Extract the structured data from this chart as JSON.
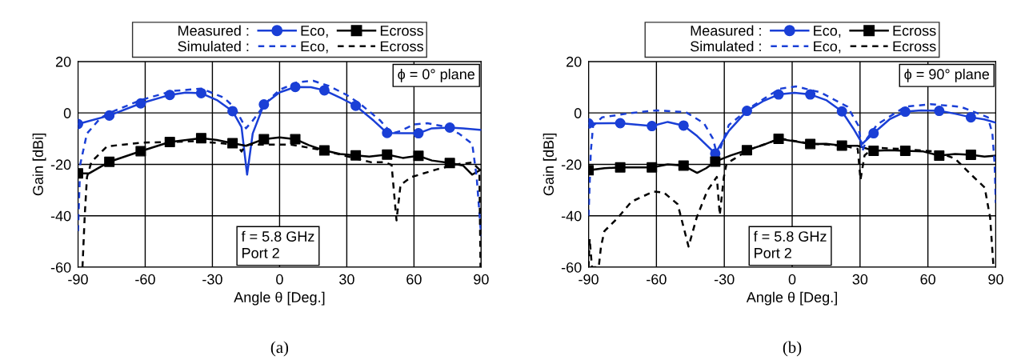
{
  "chart_data": [
    {
      "type": "line",
      "title": "(a)",
      "xlabel": "Angle θ [Deg.]",
      "ylabel": "Gain [dBi]",
      "xlim": [
        -90,
        90
      ],
      "ylim": [
        -60,
        20
      ],
      "xticks": [
        -90,
        -60,
        -30,
        0,
        30,
        60,
        90
      ],
      "yticks": [
        -60,
        -40,
        -20,
        0,
        20
      ],
      "grid": true,
      "legend": "top",
      "annotations": [
        "Measured :",
        "Simulated :",
        "ϕ = 0° plane",
        "f = 5.8 GHz\nPort 2"
      ],
      "series": [
        {
          "color": "#1a3fd6",
          "line_style": "solid",
          "x": [
            -90,
            -76,
            -62,
            -49,
            -42,
            -35,
            -28,
            -21,
            -17,
            -14.5,
            -12,
            -7,
            0,
            7,
            14,
            20,
            28,
            34,
            42,
            48,
            55,
            62,
            68,
            76,
            82,
            90
          ],
          "values": [
            -4.3,
            -1,
            3.7,
            7,
            7.9,
            7.7,
            5,
            0.7,
            -5.5,
            -24,
            -8,
            3.3,
            8,
            10.1,
            10,
            8.8,
            5.5,
            2.8,
            -3,
            -7.8,
            -7.9,
            -7.9,
            -6,
            -5.7,
            -6,
            -6.6
          ]
        },
        {
          "name": "Eco,",
          "color": "#1a3fd6",
          "type": "scatter",
          "marker": "circle",
          "x": [
            -90,
            -76,
            -62,
            -49,
            -35,
            -21,
            -7,
            7,
            20,
            34,
            48,
            62,
            76
          ],
          "values": [
            -4.3,
            -1,
            3.7,
            7,
            7.7,
            0.7,
            3.3,
            10.1,
            8.8,
            2.8,
            -7.8,
            -7.9,
            -5.7
          ]
        },
        {
          "color": "#000000",
          "line_style": "solid",
          "x": [
            -90,
            -85,
            -80,
            -76,
            -62,
            -49,
            -35,
            -28,
            -21,
            -15,
            -7,
            0,
            7,
            13,
            20,
            27,
            34,
            40,
            48,
            55,
            62,
            68,
            76,
            82,
            86,
            90
          ],
          "values": [
            -23.5,
            -23.5,
            -21,
            -19,
            -14.9,
            -11.3,
            -9.8,
            -10.5,
            -11.8,
            -12.8,
            -10.2,
            -9.5,
            -10.2,
            -12.5,
            -14.6,
            -16,
            -16.5,
            -17,
            -16.2,
            -17.5,
            -16.7,
            -18.5,
            -19.5,
            -20.5,
            -24,
            -22
          ]
        },
        {
          "name": "Ecross",
          "color": "#000000",
          "type": "scatter",
          "marker": "square",
          "x": [
            -90,
            -76,
            -62,
            -49,
            -35,
            -21,
            -7,
            7,
            20,
            34,
            48,
            62,
            76
          ],
          "values": [
            -23.5,
            -19,
            -14.9,
            -11.3,
            -9.8,
            -11.8,
            -10.2,
            -10.2,
            -14.6,
            -16.5,
            -16.2,
            -16.7,
            -19.5
          ]
        },
        {
          "name": "Eco,",
          "color": "#1a3fd6",
          "line_style": "dashed",
          "x": [
            -90,
            -89,
            -86,
            -80,
            -76,
            -62,
            -48,
            -35,
            -25,
            -20,
            -15,
            -12,
            -6,
            0,
            8,
            15,
            22,
            30,
            36,
            45,
            50,
            54,
            60,
            66,
            72,
            80,
            86,
            88,
            90
          ],
          "values": [
            -46,
            -20,
            -8,
            -2,
            0,
            5,
            8.5,
            9.5,
            6,
            2,
            -6,
            -3,
            4,
            9,
            12,
            12.5,
            10.5,
            7,
            3.5,
            -3,
            -8,
            -7,
            -4.5,
            -4,
            -5,
            -8,
            -12,
            -25,
            -48
          ]
        },
        {
          "name": "Ecross",
          "color": "#000000",
          "line_style": "dashed",
          "x": [
            -88,
            -87,
            -86,
            -84,
            -77,
            -62,
            -38,
            -19,
            -17,
            -15.5,
            -13.4,
            5,
            20,
            35,
            41,
            47,
            50,
            52.2,
            54,
            58.7,
            70,
            79,
            86,
            89.2,
            89.7
          ],
          "values": [
            -60,
            -40,
            -25,
            -19,
            -13,
            -11.6,
            -11,
            -12.3,
            -15,
            -13,
            -12.3,
            -12.3,
            -14.6,
            -18,
            -19.2,
            -19.2,
            -20.2,
            -41.8,
            -28,
            -25,
            -22,
            -20,
            -19.3,
            -22,
            -60
          ]
        }
      ]
    },
    {
      "type": "line",
      "title": "(b)",
      "xlabel": "Angle θ [Deg.]",
      "ylabel": "Gain [dBi]",
      "xlim": [
        -90,
        90
      ],
      "ylim": [
        -60,
        20
      ],
      "xticks": [
        -90,
        -60,
        -30,
        0,
        30,
        60,
        90
      ],
      "yticks": [
        -60,
        -40,
        -20,
        0,
        20
      ],
      "grid": true,
      "legend": "top",
      "annotations": [
        "Measured :",
        "Simulated :",
        "ϕ = 90° plane",
        "f = 5.8 GHz\nPort 2"
      ],
      "series": [
        {
          "color": "#1a3fd6",
          "line_style": "solid",
          "x": [
            -90,
            -76,
            -62,
            -55,
            -48,
            -42,
            -34,
            -28,
            -20,
            -13,
            -6,
            1,
            8,
            15,
            22,
            27,
            31,
            36,
            43,
            50,
            57,
            65,
            72,
            79,
            85,
            90
          ],
          "values": [
            -4.1,
            -4,
            -5.1,
            -3.5,
            -4.9,
            -9,
            -15.8,
            -7,
            0.8,
            4.5,
            7.2,
            7.8,
            7.2,
            5,
            0.6,
            -6,
            -12,
            -7.9,
            -2.5,
            0.5,
            1,
            0.8,
            -0.3,
            -1.7,
            -2.5,
            -3.8
          ]
        },
        {
          "name": "Eco,",
          "color": "#1a3fd6",
          "type": "scatter",
          "marker": "circle",
          "x": [
            -90,
            -76,
            -62,
            -48,
            -34,
            -20,
            -6,
            8,
            22,
            36,
            50,
            65,
            79
          ],
          "values": [
            -4.1,
            -4,
            -5.1,
            -4.9,
            -15.8,
            0.8,
            7.2,
            7.2,
            0.6,
            -7.9,
            0.5,
            0.8,
            -1.7
          ]
        },
        {
          "color": "#000000",
          "line_style": "solid",
          "x": [
            -90,
            -83,
            -76,
            -62,
            -55,
            -48,
            -42,
            -38,
            -34,
            -27,
            -20,
            -13,
            -6,
            1,
            8,
            15,
            22,
            29,
            36,
            43,
            50,
            58,
            65,
            72,
            79,
            85,
            90
          ],
          "values": [
            -22.3,
            -21.5,
            -21.2,
            -21.2,
            -20,
            -20.5,
            -23.3,
            -21.5,
            -18.9,
            -16.5,
            -14.5,
            -12.5,
            -10.1,
            -11,
            -12.1,
            -12,
            -12.7,
            -12.8,
            -14.7,
            -14.5,
            -14.7,
            -15,
            -16.6,
            -16,
            -16.3,
            -17,
            -16.6
          ]
        },
        {
          "name": "Ecross",
          "color": "#000000",
          "type": "scatter",
          "marker": "square",
          "x": [
            -90,
            -76,
            -62,
            -48,
            -34,
            -20,
            -6,
            8,
            22,
            36,
            50,
            65,
            79
          ],
          "values": [
            -22.3,
            -21.2,
            -21.2,
            -20.5,
            -18.9,
            -14.5,
            -10.1,
            -12.1,
            -12.7,
            -14.7,
            -14.7,
            -16.6,
            -16.3
          ]
        },
        {
          "name": "Eco,",
          "color": "#1a3fd6",
          "line_style": "dashed",
          "x": [
            -90,
            -89,
            -88,
            -84,
            -71,
            -60,
            -47,
            -39,
            -35,
            -33,
            -31,
            -28,
            -18,
            -5.5,
            1.7,
            12.5,
            24.5,
            29.3,
            31,
            33,
            37.7,
            50,
            61,
            74.5,
            86.5,
            88.5,
            89.5,
            90
          ],
          "values": [
            -40,
            -15,
            -5,
            -1.7,
            0,
            1,
            0.3,
            -4,
            -10,
            -17,
            -12,
            -4.7,
            2.4,
            9.4,
            10.3,
            8,
            2.4,
            -5,
            -15,
            -10,
            -4.4,
            2.4,
            3.4,
            2.4,
            -1.7,
            -8,
            -20,
            -35
          ]
        },
        {
          "name": "Ecross",
          "color": "#000000",
          "line_style": "dashed",
          "x": [
            -90,
            -89.5,
            -88.5,
            -85.5,
            -84.5,
            -83,
            -77,
            -71,
            -61.4,
            -56.7,
            -50.6,
            -45.8,
            -42.2,
            -37.5,
            -33.3,
            -32,
            -30.2,
            -29,
            -25.5,
            -19.6,
            -5.2,
            8.8,
            22.5,
            29,
            30.2,
            32,
            36,
            48,
            63.6,
            72,
            80.3,
            85.1,
            87.5,
            89
          ],
          "values": [
            -60,
            -49,
            -60,
            -60,
            -52,
            -46,
            -40.7,
            -34.5,
            -30.6,
            -31,
            -35.5,
            -52,
            -40.7,
            -30.2,
            -24.9,
            -39.7,
            -25,
            -19.7,
            -17.8,
            -14.5,
            -10,
            -12,
            -12.7,
            -14,
            -26,
            -16.5,
            -13.5,
            -14,
            -15,
            -17.8,
            -25,
            -29,
            -40.7,
            -60
          ]
        }
      ]
    }
  ]
}
